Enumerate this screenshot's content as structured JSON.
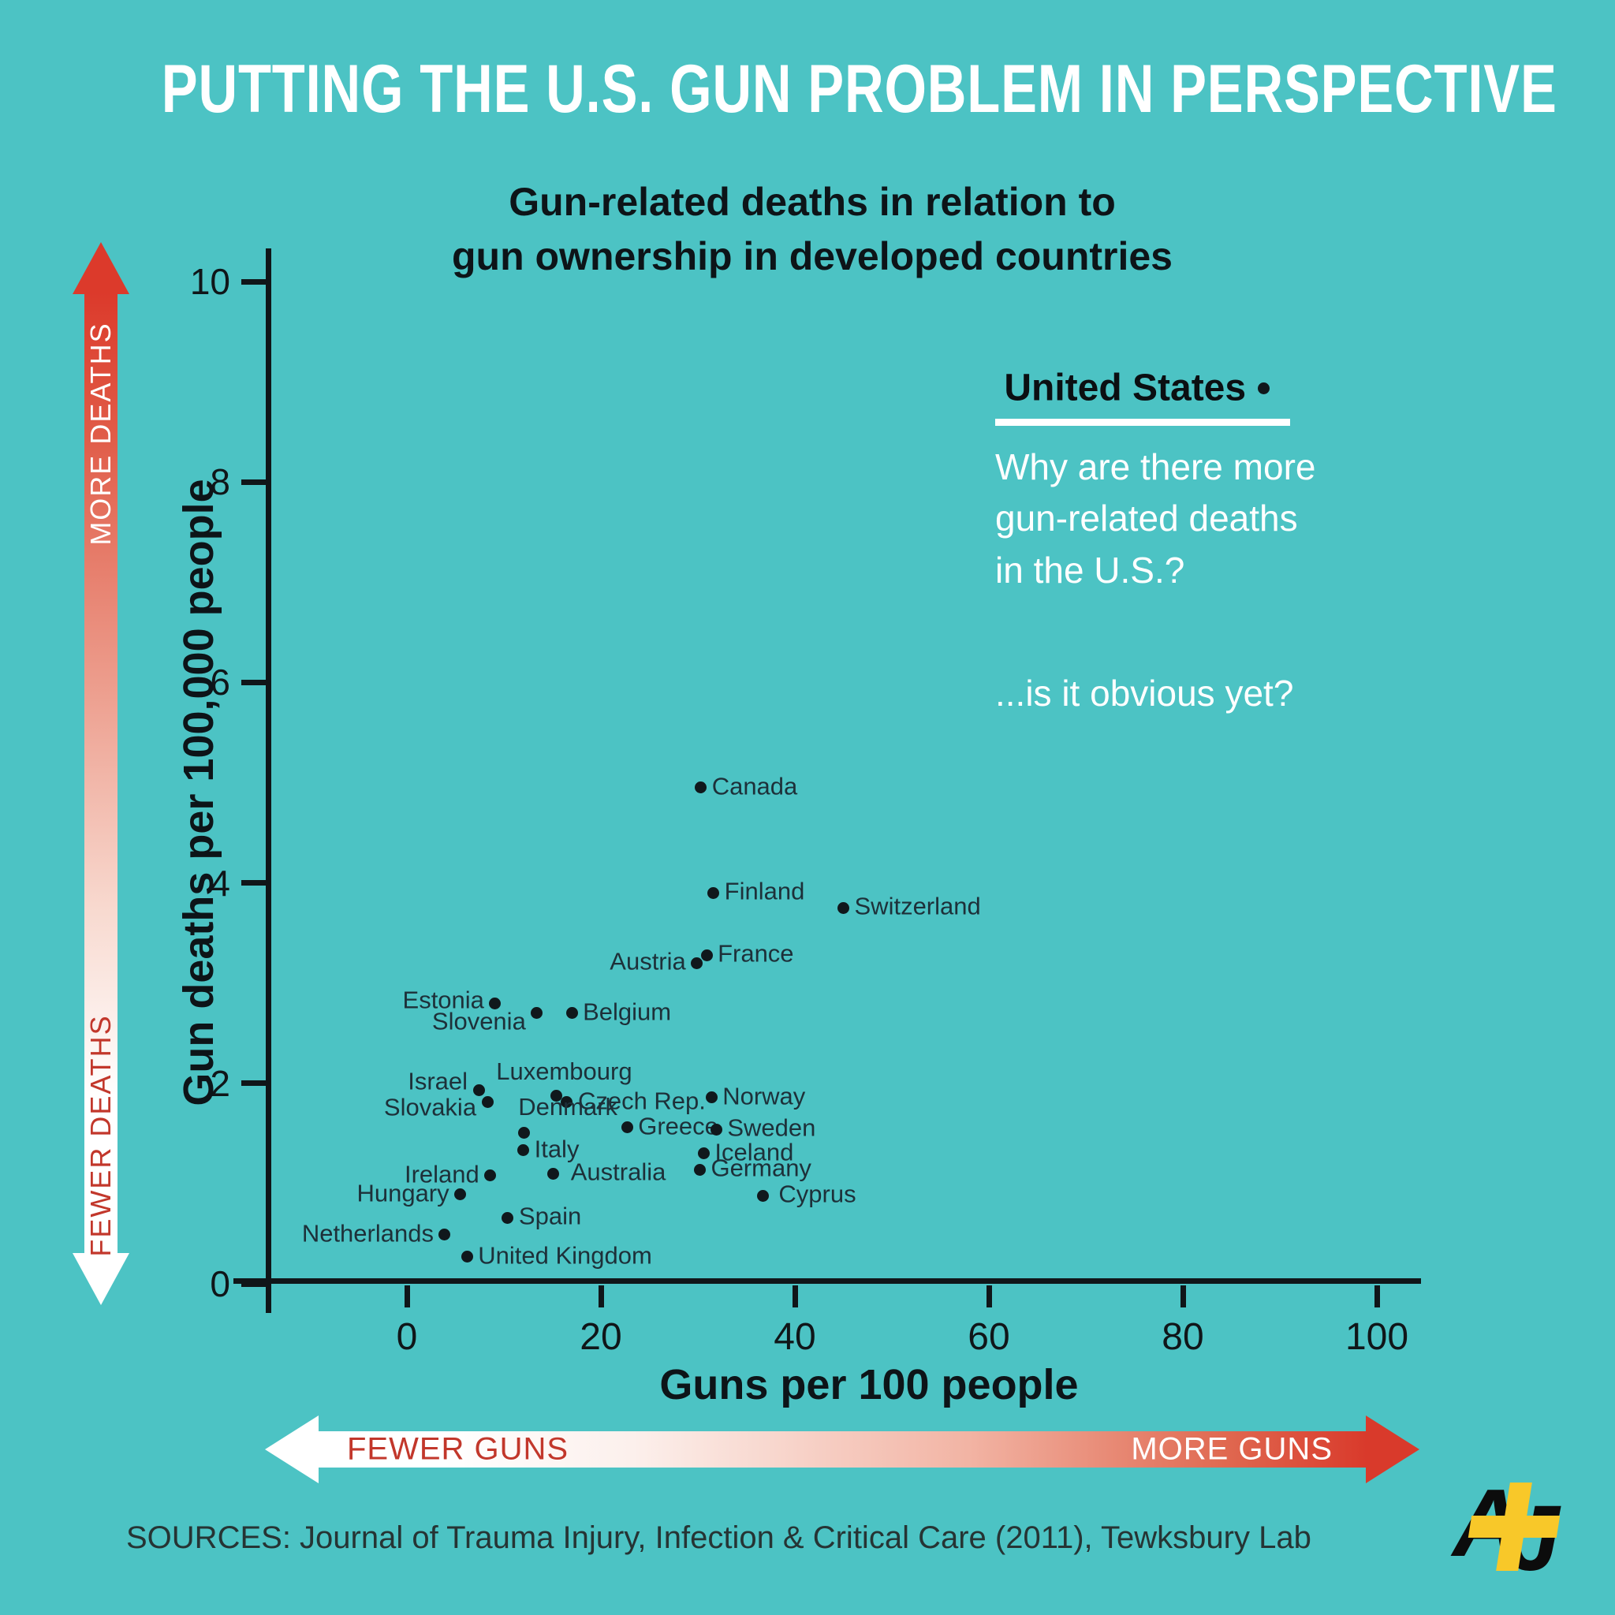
{
  "title": "PUTTING THE U.S. GUN PROBLEM IN PERSPECTIVE",
  "subtitle": {
    "line1": "Gun-related deaths in relation to",
    "line2": "gun ownership in developed countries"
  },
  "annotation": {
    "country": "United States",
    "question_line1": "Why are there more",
    "question_line2": "gun-related deaths",
    "question_line3": "in the U.S.?",
    "tagline": "...is it obvious yet?"
  },
  "left_arrow": {
    "top_label": "MORE DEATHS",
    "bottom_label": "FEWER DEATHS"
  },
  "bottom_arrow": {
    "left_label": "FEWER GUNS",
    "right_label": "MORE GUNS"
  },
  "sources": "SOURCES: Journal of Trauma Injury, Infection & Critical Care (2011), Tewksbury Lab",
  "logo": {
    "letter_a": "A",
    "letter_j": "J"
  },
  "colors": {
    "background": "#4cc3c4",
    "accent_red": "#dc3a2b",
    "red_text": "#c2372b",
    "label_dark": "#1d3039",
    "white": "#ffffff",
    "logo_yellow": "#f8c829",
    "dot_black": "#10181c"
  },
  "chart_data": {
    "type": "scatter",
    "title": "Gun-related deaths in relation to gun ownership in developed countries",
    "xlabel": "Guns per 100 people",
    "ylabel": "Gun deaths per 100,000 people",
    "xlim": [
      0,
      100
    ],
    "ylim": [
      0,
      10
    ],
    "x_ticks": [
      0,
      20,
      40,
      60,
      80,
      100
    ],
    "y_ticks": [
      0,
      2,
      4,
      6,
      8,
      10
    ],
    "grid": false,
    "points": [
      {
        "label": "Canada",
        "x": 30.3,
        "y": 4.95,
        "pos": "right"
      },
      {
        "label": "Finland",
        "x": 31.6,
        "y": 3.9,
        "pos": "right"
      },
      {
        "label": "Switzerland",
        "x": 45.0,
        "y": 3.75,
        "pos": "right"
      },
      {
        "label": "Austria",
        "x": 29.9,
        "y": 3.2,
        "pos": "left"
      },
      {
        "label": "France",
        "x": 30.9,
        "y": 3.28,
        "pos": "right"
      },
      {
        "label": "Estonia",
        "x": 9.1,
        "y": 2.8,
        "pos": "left",
        "ny": -2
      },
      {
        "label": "Slovenia",
        "x": 13.4,
        "y": 2.7,
        "pos": "left",
        "ny": 12
      },
      {
        "label": "Belgium",
        "x": 17.0,
        "y": 2.7,
        "pos": "right"
      },
      {
        "label": "Israel",
        "x": 7.4,
        "y": 1.93,
        "pos": "left",
        "ny": -10
      },
      {
        "label": "Slovakia",
        "x": 8.3,
        "y": 1.81,
        "pos": "left",
        "ny": 8
      },
      {
        "label": "Luxembourg",
        "x": 15.4,
        "y": 1.88,
        "pos": "above",
        "nx": 10
      },
      {
        "label": "Czech Rep.",
        "x": 16.5,
        "y": 1.81,
        "pos": "right"
      },
      {
        "label": "Norway",
        "x": 31.4,
        "y": 1.86,
        "pos": "right"
      },
      {
        "label": "Denmark",
        "x": 12.1,
        "y": 1.51,
        "pos": "above-right"
      },
      {
        "label": "Greece",
        "x": 22.7,
        "y": 1.56,
        "pos": "right"
      },
      {
        "label": "Sweden",
        "x": 31.9,
        "y": 1.54,
        "pos": "right"
      },
      {
        "label": "Italy",
        "x": 12.0,
        "y": 1.33,
        "pos": "right"
      },
      {
        "label": "Iceland",
        "x": 30.6,
        "y": 1.3,
        "pos": "right"
      },
      {
        "label": "Germany",
        "x": 30.2,
        "y": 1.14,
        "pos": "right"
      },
      {
        "label": "Ireland",
        "x": 8.6,
        "y": 1.08,
        "pos": "left"
      },
      {
        "label": "Australia",
        "x": 15.1,
        "y": 1.1,
        "pos": "right",
        "nx": 8
      },
      {
        "label": "Hungary",
        "x": 5.5,
        "y": 0.89,
        "pos": "left"
      },
      {
        "label": "Cyprus",
        "x": 36.7,
        "y": 0.88,
        "pos": "right",
        "nx": 6
      },
      {
        "label": "Spain",
        "x": 10.4,
        "y": 0.66,
        "pos": "right"
      },
      {
        "label": "Netherlands",
        "x": 3.9,
        "y": 0.49,
        "pos": "left"
      },
      {
        "label": "United Kingdom",
        "x": 6.2,
        "y": 0.27,
        "pos": "right"
      },
      {
        "label": "United States",
        "x": 88.3,
        "y": 8.93,
        "pos": "left",
        "style": "us"
      }
    ]
  }
}
